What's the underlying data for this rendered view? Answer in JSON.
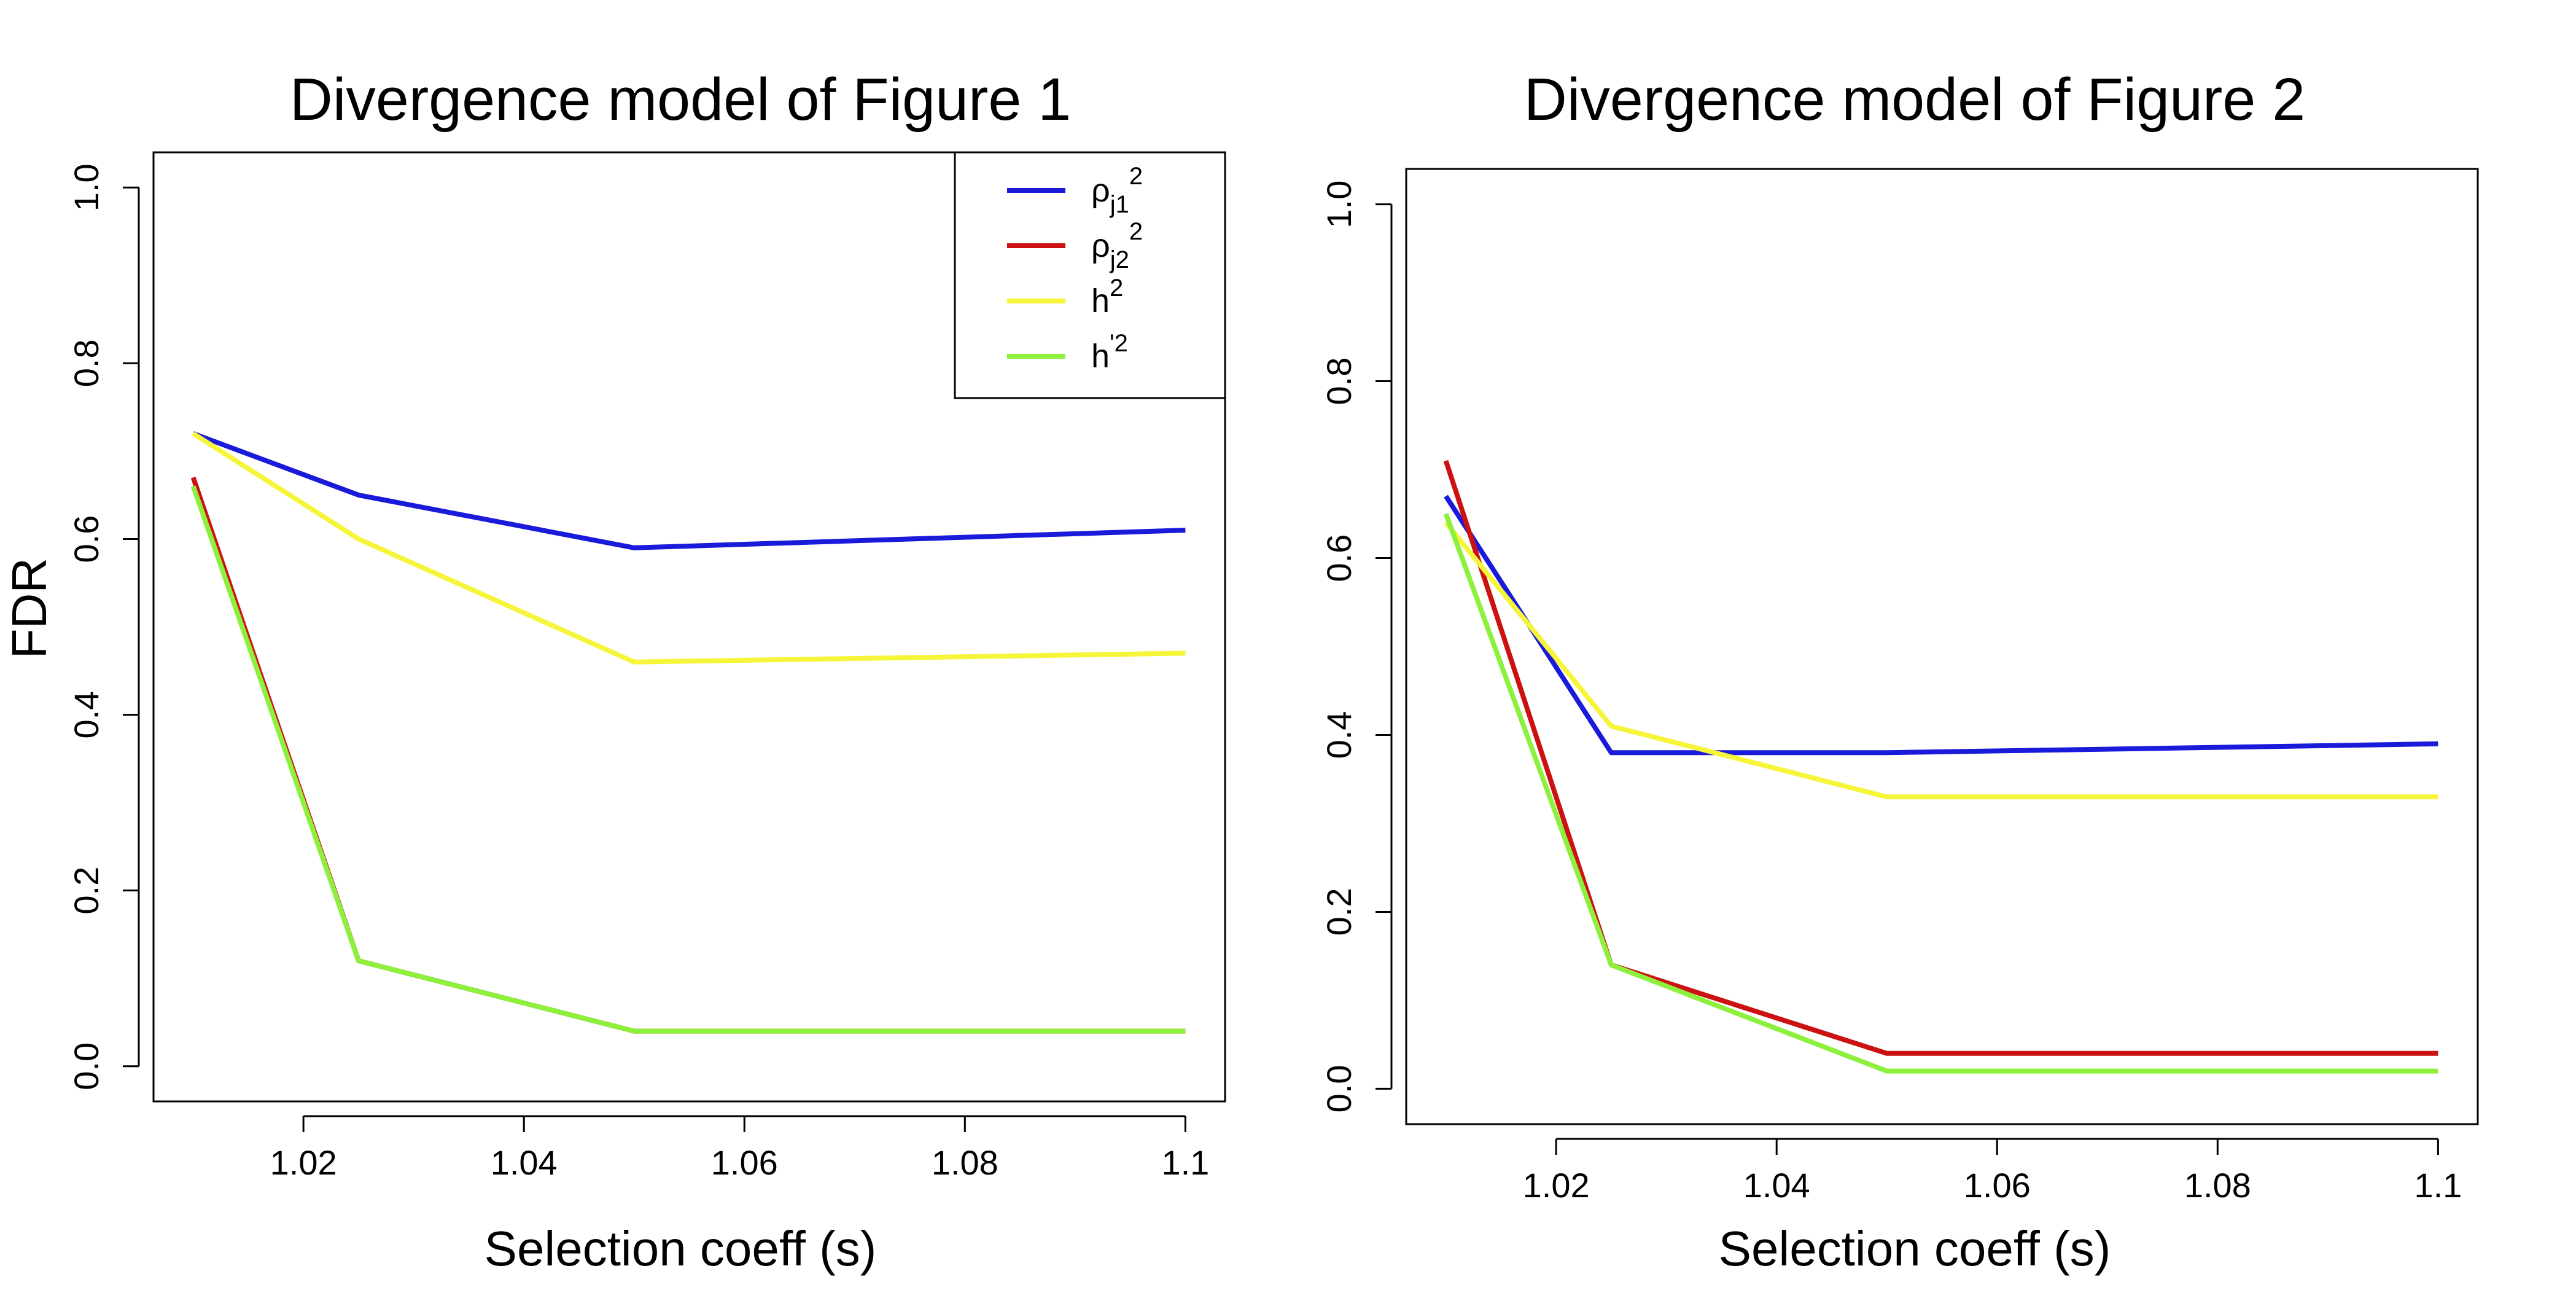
{
  "chart_data": [
    {
      "type": "line",
      "title": "Divergence model of Figure 1",
      "xlabel": "Selection coeff (s)",
      "ylabel": "FDR",
      "x": [
        1.01,
        1.025,
        1.05,
        1.1
      ],
      "xticks": [
        "1.02",
        "1.04",
        "1.06",
        "1.08",
        "1.1"
      ],
      "xlim": [
        1.0064,
        1.1036
      ],
      "yticks": [
        "0.0",
        "0.2",
        "0.4",
        "0.6",
        "0.8",
        "1.0"
      ],
      "ylim": [
        -0.04,
        1.04
      ],
      "grid": false,
      "legend": "top-right",
      "series": [
        {
          "key": "rho1",
          "values": [
            0.72,
            0.65,
            0.59,
            0.61
          ],
          "color": "#1a1adb"
        },
        {
          "key": "rho2",
          "values": [
            0.67,
            0.12,
            0.04,
            0.04
          ],
          "color": "#cc1111"
        },
        {
          "key": "h",
          "values": [
            0.72,
            0.6,
            0.46,
            0.47
          ],
          "color": "#f5f53a"
        },
        {
          "key": "hp",
          "values": [
            0.66,
            0.12,
            0.04,
            0.04
          ],
          "color": "#8cf03c"
        }
      ]
    },
    {
      "type": "line",
      "title": "Divergence model of Figure 2",
      "xlabel": "Selection coeff (s)",
      "ylabel": "",
      "x": [
        1.01,
        1.025,
        1.05,
        1.1
      ],
      "xticks": [
        "1.02",
        "1.04",
        "1.06",
        "1.08",
        "1.1"
      ],
      "xlim": [
        1.0064,
        1.1036
      ],
      "yticks": [
        "0.0",
        "0.2",
        "0.4",
        "0.6",
        "0.8",
        "1.0"
      ],
      "ylim": [
        -0.04,
        1.04
      ],
      "grid": false,
      "legend": "none",
      "series": [
        {
          "key": "rho1",
          "values": [
            0.67,
            0.38,
            0.38,
            0.39
          ],
          "color": "#1a1adb"
        },
        {
          "key": "rho2",
          "values": [
            0.71,
            0.14,
            0.04,
            0.04
          ],
          "color": "#cc1111"
        },
        {
          "key": "h",
          "values": [
            0.64,
            0.41,
            0.33,
            0.33
          ],
          "color": "#f5f53a"
        },
        {
          "key": "hp",
          "values": [
            0.65,
            0.14,
            0.02,
            0.02
          ],
          "color": "#8cf03c"
        }
      ]
    }
  ],
  "legend": {
    "entries": [
      {
        "key": "rho1",
        "base": "ρ",
        "sub": "j1",
        "sup": "2",
        "color": "#1a1adb"
      },
      {
        "key": "rho2",
        "base": "ρ",
        "sub": "j2",
        "sup": "2",
        "color": "#cc1111"
      },
      {
        "key": "h",
        "base": "h",
        "sub": "",
        "sup": "2",
        "color": "#f5f53a"
      },
      {
        "key": "hp",
        "base": "h",
        "sub": "",
        "sup": "'2",
        "color": "#8cf03c"
      }
    ]
  }
}
